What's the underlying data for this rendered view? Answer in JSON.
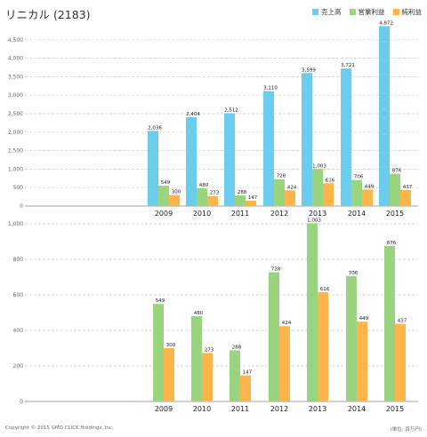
{
  "title": "リニカル (2183)",
  "copyright": "Copyright © 2015 GMO CLICK Holdings, Inc.",
  "unit_label": "(単位: 百万円)",
  "colors": {
    "sales": "#6bcdeb",
    "operating": "#9bd47e",
    "net": "#fdb44b",
    "grid": "#c8c8c8",
    "axis": "#666666",
    "text": "#333333"
  },
  "chart_data": [
    {
      "type": "bar",
      "categories": [
        "2009",
        "2010",
        "2011",
        "2012",
        "2013",
        "2014",
        "2015"
      ],
      "ylim": [
        0,
        5000
      ],
      "yticks": [
        "0",
        "500",
        "1,000",
        "1,500",
        "2,000",
        "2,500",
        "3,000",
        "3,500",
        "4,000",
        "4,500"
      ],
      "ytick_values": [
        0,
        500,
        1000,
        1500,
        2000,
        2500,
        3000,
        3500,
        4000,
        4500
      ],
      "series": [
        {
          "name": "売上高",
          "color_key": "sales",
          "values": [
            2036,
            2404,
            2512,
            3110,
            3599,
            3721,
            4872
          ],
          "labels": [
            "2,036",
            "2,404",
            "2,512",
            "3,110",
            "3,599",
            "3,721",
            "4,872"
          ]
        },
        {
          "name": "営業利益",
          "color_key": "operating",
          "values": [
            549,
            480,
            288,
            728,
            1003,
            706,
            876
          ],
          "labels": [
            "549",
            "480",
            "288",
            "728",
            "1,003",
            "706",
            "876"
          ]
        },
        {
          "name": "純利益",
          "color_key": "net",
          "values": [
            300,
            273,
            147,
            424,
            616,
            449,
            437
          ],
          "labels": [
            "300",
            "273",
            "147",
            "424",
            "616",
            "449",
            "437"
          ]
        }
      ],
      "grid": true,
      "legend": "top-right"
    },
    {
      "type": "bar",
      "categories": [
        "2009",
        "2010",
        "2011",
        "2012",
        "2013",
        "2014",
        "2015"
      ],
      "ylim": [
        0,
        1000
      ],
      "yticks": [
        "0",
        "200",
        "400",
        "600",
        "800",
        "1,000"
      ],
      "ytick_values": [
        0,
        200,
        400,
        600,
        800,
        1000
      ],
      "series": [
        {
          "name": "営業利益",
          "color_key": "operating",
          "values": [
            549,
            480,
            288,
            728,
            1003,
            706,
            876
          ],
          "labels": [
            "549",
            "480",
            "288",
            "728",
            "1,003",
            "706",
            "876"
          ]
        },
        {
          "name": "純利益",
          "color_key": "net",
          "values": [
            300,
            273,
            147,
            424,
            616,
            449,
            437
          ],
          "labels": [
            "300",
            "273",
            "147",
            "424",
            "616",
            "449",
            "437"
          ]
        }
      ],
      "grid": true
    }
  ]
}
